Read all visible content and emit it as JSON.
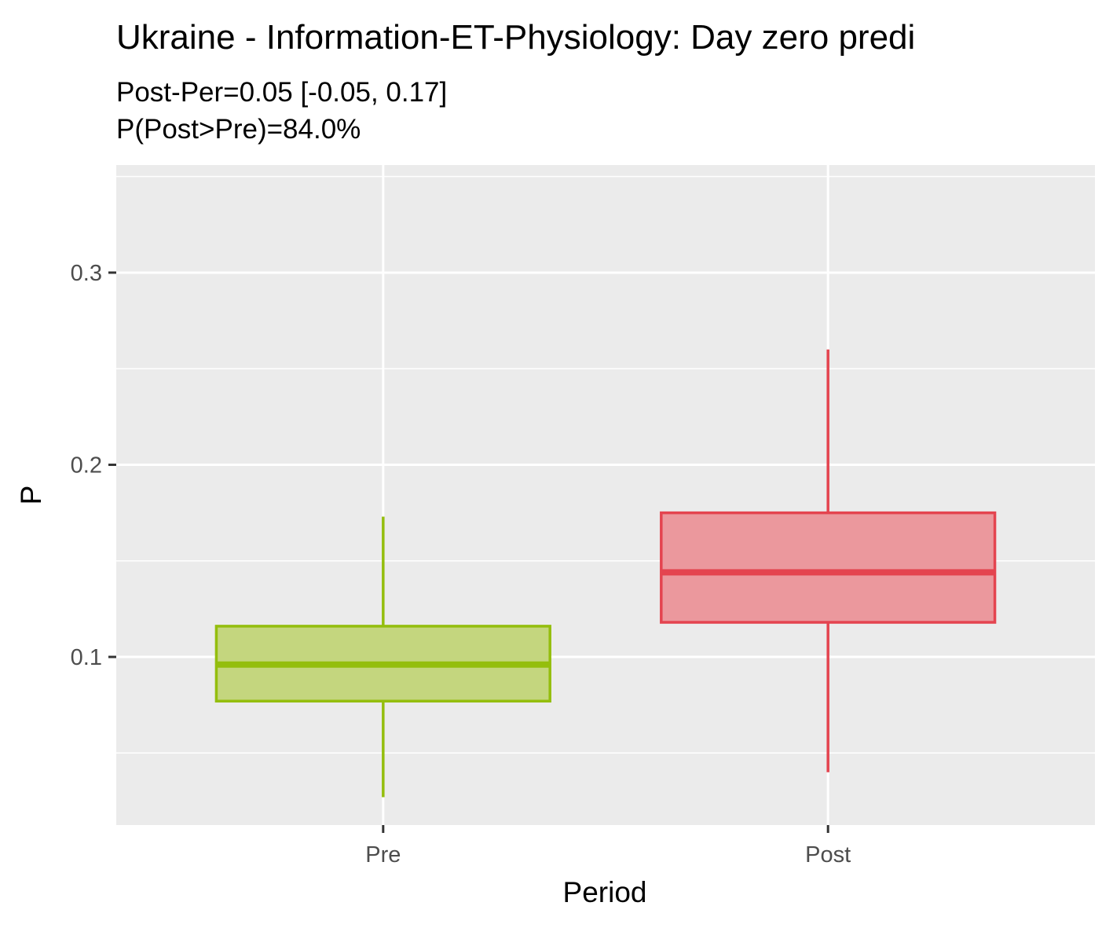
{
  "chart_data": {
    "type": "boxplot",
    "title": "Ukraine - Information-ET-Physiology: Day zero predi",
    "subtitle_lines": [
      "Post-Per=0.05 [-0.05, 0.17]",
      "P(Post>Pre)=84.0%"
    ],
    "xlabel": "Period",
    "ylabel": "P",
    "ylim": [
      0.0125,
      0.356
    ],
    "y_ticks": [
      0.1,
      0.2,
      0.3
    ],
    "y_tick_labels": [
      "0.1",
      "0.2",
      "0.3"
    ],
    "y_minor_ticks": [
      0.05,
      0.15,
      0.25,
      0.35
    ],
    "categories": [
      "Pre",
      "Post"
    ],
    "grid": true,
    "boxes": [
      {
        "category": "Pre",
        "whisker_low": 0.027,
        "q1": 0.077,
        "median": 0.096,
        "q3": 0.116,
        "whisker_high": 0.173,
        "color": "#94be0d",
        "fill": "#c4d67e"
      },
      {
        "category": "Post",
        "whisker_low": 0.04,
        "q1": 0.118,
        "median": 0.144,
        "q3": 0.175,
        "whisker_high": 0.26,
        "color": "#e4444f",
        "fill": "#eb989d"
      }
    ]
  }
}
